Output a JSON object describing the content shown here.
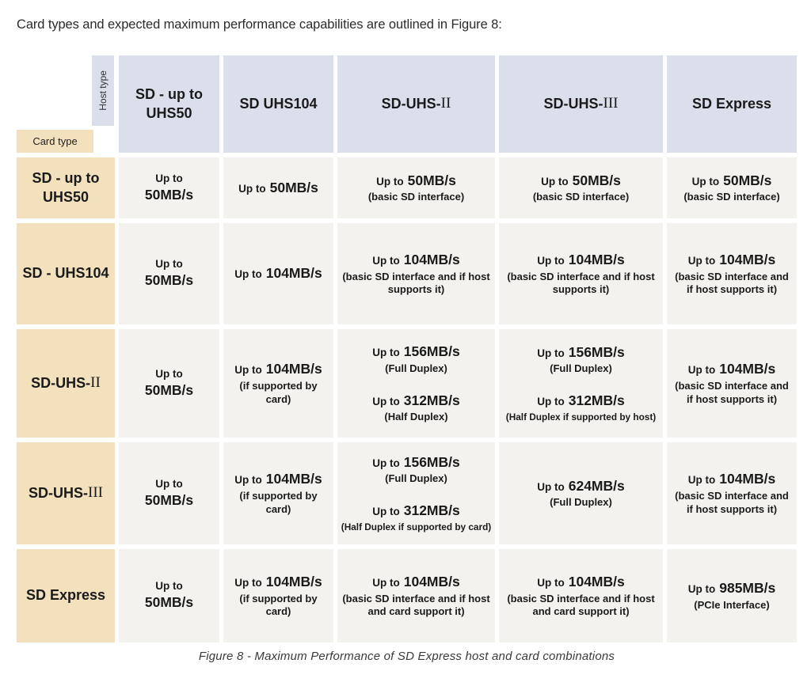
{
  "intro": {
    "text": "Card types and expected maximum performance capabilities are outlined in Figure 8:"
  },
  "figure": {
    "caption": "Figure 8 - Maximum Performance of SD Express host and card combinations"
  },
  "colors": {
    "header_bg": "#dbdfeb",
    "row_header_bg": "#f3e0bd",
    "cell_bg": "#f3f2ef",
    "text": "#1a1a1a"
  },
  "table": {
    "host_axis_label": "Host type",
    "card_axis_label": "Card type",
    "columns": [
      {
        "prefix": "SD - up to UHS50",
        "numeral": ""
      },
      {
        "prefix": "SD UHS104",
        "numeral": ""
      },
      {
        "prefix": "SD-UHS-",
        "numeral": "II"
      },
      {
        "prefix": "SD-UHS-",
        "numeral": "III"
      },
      {
        "prefix": "SD Express",
        "numeral": ""
      }
    ],
    "rows": [
      {
        "header": {
          "prefix": "SD - up to UHS50",
          "numeral": ""
        },
        "cells": [
          {
            "blocks": [
              {
                "lead": "Up to",
                "value": "50MB/s",
                "stack": true
              }
            ]
          },
          {
            "blocks": [
              {
                "lead": "Up to",
                "value": "50MB/s"
              }
            ]
          },
          {
            "blocks": [
              {
                "lead": "Up to",
                "value": "50MB/s",
                "note": "(basic SD interface)"
              }
            ]
          },
          {
            "blocks": [
              {
                "lead": "Up to",
                "value": "50MB/s",
                "note": "(basic SD interface)"
              }
            ]
          },
          {
            "blocks": [
              {
                "lead": "Up to",
                "value": "50MB/s",
                "note": "(basic SD interface)"
              }
            ]
          }
        ]
      },
      {
        "header": {
          "prefix": "SD - UHS104",
          "numeral": ""
        },
        "cells": [
          {
            "blocks": [
              {
                "lead": "Up to",
                "value": "50MB/s",
                "stack": true
              }
            ]
          },
          {
            "blocks": [
              {
                "lead": "Up to",
                "value": "104MB/s"
              }
            ]
          },
          {
            "blocks": [
              {
                "lead": "Up to",
                "value": "104MB/s",
                "note": "(basic SD interface and if host supports it)"
              }
            ]
          },
          {
            "blocks": [
              {
                "lead": "Up to",
                "value": "104MB/s",
                "note": "(basic SD interface and if host supports it)"
              }
            ]
          },
          {
            "blocks": [
              {
                "lead": "Up to",
                "value": "104MB/s",
                "note": "(basic SD interface and if host supports it)"
              }
            ]
          }
        ]
      },
      {
        "header": {
          "prefix": "SD-UHS-",
          "numeral": "II"
        },
        "cells": [
          {
            "blocks": [
              {
                "lead": "Up to",
                "value": "50MB/s",
                "stack": true
              }
            ]
          },
          {
            "blocks": [
              {
                "lead": "Up to",
                "value": "104MB/s",
                "note": "(if supported by card)"
              }
            ]
          },
          {
            "blocks": [
              {
                "lead": "Up to",
                "value": "156MB/s",
                "note": "(Full Duplex)"
              },
              {
                "lead": "Up to",
                "value": "312MB/s",
                "note": "(Half Duplex)"
              }
            ]
          },
          {
            "blocks": [
              {
                "lead": "Up to",
                "value": "156MB/s",
                "note": "(Full Duplex)"
              },
              {
                "lead": "Up to",
                "value": "312MB/s",
                "note": "(Half Duplex if supported by host)",
                "note_small": true
              }
            ]
          },
          {
            "blocks": [
              {
                "lead": "Up to",
                "value": "104MB/s",
                "note": "(basic SD interface and if host supports it)"
              }
            ]
          }
        ]
      },
      {
        "header": {
          "prefix": "SD-UHS-",
          "numeral": "III"
        },
        "cells": [
          {
            "blocks": [
              {
                "lead": "Up to",
                "value": "50MB/s",
                "stack": true
              }
            ]
          },
          {
            "blocks": [
              {
                "lead": "Up to",
                "value": "104MB/s",
                "note": "(if supported by card)"
              }
            ]
          },
          {
            "blocks": [
              {
                "lead": "Up to",
                "value": "156MB/s",
                "note": "(Full Duplex)"
              },
              {
                "lead": "Up to",
                "value": "312MB/s",
                "note": "(Half Duplex if supported by card)",
                "note_small": true
              }
            ]
          },
          {
            "blocks": [
              {
                "lead": "Up to",
                "value": "624MB/s",
                "note": "(Full Duplex)"
              }
            ]
          },
          {
            "blocks": [
              {
                "lead": "Up to",
                "value": "104MB/s",
                "note": "(basic SD interface and if host supports it)"
              }
            ]
          }
        ]
      },
      {
        "header": {
          "prefix": "SD Express",
          "numeral": ""
        },
        "cells": [
          {
            "blocks": [
              {
                "lead": "Up to",
                "value": "50MB/s",
                "stack": true
              }
            ]
          },
          {
            "blocks": [
              {
                "lead": "Up to",
                "value": "104MB/s",
                "note": "(if supported by card)"
              }
            ]
          },
          {
            "blocks": [
              {
                "lead": "Up to",
                "value": "104MB/s",
                "note": "(basic SD interface and if host and card support it)"
              }
            ]
          },
          {
            "blocks": [
              {
                "lead": "Up to",
                "value": "104MB/s",
                "note": "(basic SD interface and if host and card support it)"
              }
            ]
          },
          {
            "blocks": [
              {
                "lead": "Up to",
                "value": "985MB/s",
                "note": "(PCIe Interface)"
              }
            ]
          }
        ]
      }
    ]
  }
}
